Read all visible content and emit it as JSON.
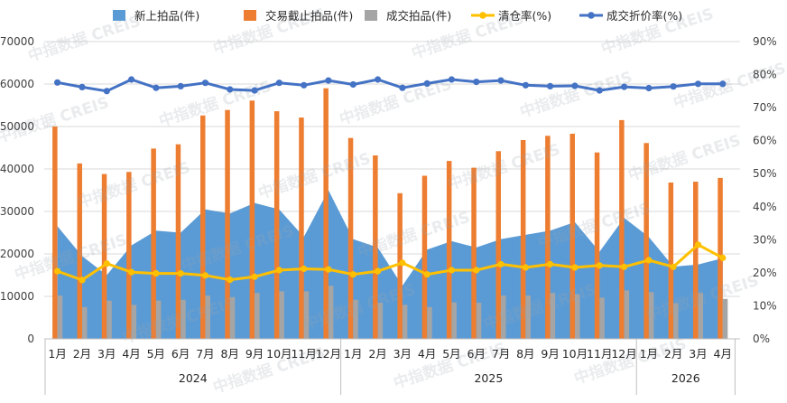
{
  "chart_data": {
    "type": "bar",
    "title": "",
    "watermark": "中指数据 CREIS",
    "years": [
      {
        "label": "2024",
        "count": 12
      },
      {
        "label": "2025",
        "count": 12
      },
      {
        "label": "2026",
        "count": 4
      }
    ],
    "categories": [
      "1月",
      "2月",
      "3月",
      "4月",
      "5月",
      "6月",
      "7月",
      "8月",
      "9月",
      "10月",
      "11月",
      "12月",
      "1月",
      "2月",
      "3月",
      "4月",
      "5月",
      "6月",
      "7月",
      "8月",
      "9月",
      "10月",
      "11月",
      "12月",
      "1月",
      "2月",
      "3月",
      "4月"
    ],
    "left_axis": {
      "ylim": [
        0,
        70000
      ],
      "ticks": [
        0,
        10000,
        20000,
        30000,
        40000,
        50000,
        60000,
        70000
      ],
      "tick_labels": [
        "0",
        "10000",
        "20000",
        "30000",
        "40000",
        "50000",
        "60000",
        "70000"
      ]
    },
    "right_axis": {
      "ylim": [
        0,
        90
      ],
      "ticks": [
        0,
        10,
        20,
        30,
        40,
        50,
        60,
        70,
        80,
        90
      ],
      "tick_labels": [
        "0%",
        "10%",
        "20%",
        "30%",
        "40%",
        "50%",
        "60%",
        "70%",
        "80%",
        "90%"
      ]
    },
    "series": [
      {
        "name": "新上拍品(件)",
        "kind": "area",
        "axis": "left",
        "color": "#5b9bd5",
        "values": [
          26500,
          19500,
          15000,
          22000,
          25500,
          25000,
          30500,
          29500,
          32000,
          30500,
          24000,
          35000,
          23500,
          21500,
          12500,
          21000,
          23000,
          21500,
          23500,
          24500,
          25500,
          27500,
          20500,
          28500,
          24000,
          17000,
          17500,
          19000
        ]
      },
      {
        "name": "交易截止拍品(件)",
        "kind": "bar",
        "axis": "left",
        "color": "#ed7d31",
        "values": [
          50000,
          41300,
          38800,
          39300,
          44800,
          45800,
          52600,
          53900,
          56100,
          53600,
          52100,
          59000,
          47300,
          43200,
          34300,
          38400,
          41900,
          40300,
          44200,
          46800,
          47800,
          48300,
          43900,
          51500,
          46100,
          36800,
          37000,
          37900
        ]
      },
      {
        "name": "成交拍品(件)",
        "kind": "bar",
        "axis": "left",
        "color": "#a5a5a5",
        "values": [
          10200,
          7500,
          9000,
          8000,
          9000,
          9200,
          10200,
          9800,
          10800,
          11200,
          11200,
          12500,
          9200,
          8500,
          8000,
          7500,
          8600,
          8500,
          10200,
          10200,
          10800,
          10500,
          9700,
          11400,
          11000,
          8400,
          10800,
          9400
        ]
      },
      {
        "name": "清仓率(%)",
        "kind": "line",
        "axis": "right",
        "color": "#ffc000",
        "values": [
          20.5,
          17.8,
          22.8,
          20.2,
          19.8,
          19.8,
          19.2,
          17.9,
          18.8,
          20.8,
          21.2,
          21.0,
          19.5,
          20.5,
          23.0,
          19.5,
          20.8,
          20.8,
          22.6,
          21.6,
          22.6,
          21.6,
          22.2,
          21.8,
          23.8,
          21.8,
          28.5,
          24.5
        ]
      },
      {
        "name": "成交折价率(%)",
        "kind": "line",
        "axis": "right",
        "color": "#4472c4",
        "values": [
          77.6,
          76.2,
          75.0,
          78.5,
          76.0,
          76.5,
          77.5,
          75.5,
          75.2,
          77.5,
          76.8,
          78.2,
          77.0,
          78.5,
          76.0,
          77.3,
          78.5,
          77.8,
          78.2,
          76.8,
          76.5,
          76.6,
          75.2,
          76.3,
          75.9,
          76.4,
          77.2,
          77.2
        ]
      }
    ],
    "legend_position": "top",
    "grid": true
  }
}
